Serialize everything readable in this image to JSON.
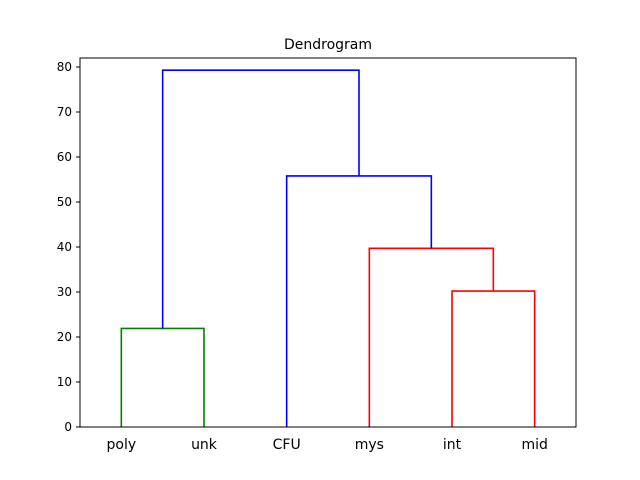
{
  "chart_data": {
    "type": "dendrogram",
    "title": "Dendrogram",
    "xlabel": "",
    "ylabel": "",
    "ylim": [
      0,
      82
    ],
    "yticks": [
      0,
      10,
      20,
      30,
      40,
      50,
      60,
      70,
      80
    ],
    "leaves": [
      "poly",
      "unk",
      "CFU",
      "mys",
      "int",
      "mid"
    ],
    "merges": [
      {
        "left": "poly",
        "right": "unk",
        "height": 21.9,
        "color": "#008000"
      },
      {
        "left": "int",
        "right": "mid",
        "height": 30.2,
        "color": "#ff0000"
      },
      {
        "left": "mys",
        "right": "int+mid",
        "height": 39.7,
        "color": "#ff0000"
      },
      {
        "left": "CFU",
        "right": "mys+int+mid",
        "height": 55.8,
        "color": "#0000ff"
      },
      {
        "left": "poly+unk",
        "right": "CFU+mys+int+mid",
        "height": 79.3,
        "color": "#0000ff"
      }
    ],
    "grid": false,
    "legend": "none"
  }
}
